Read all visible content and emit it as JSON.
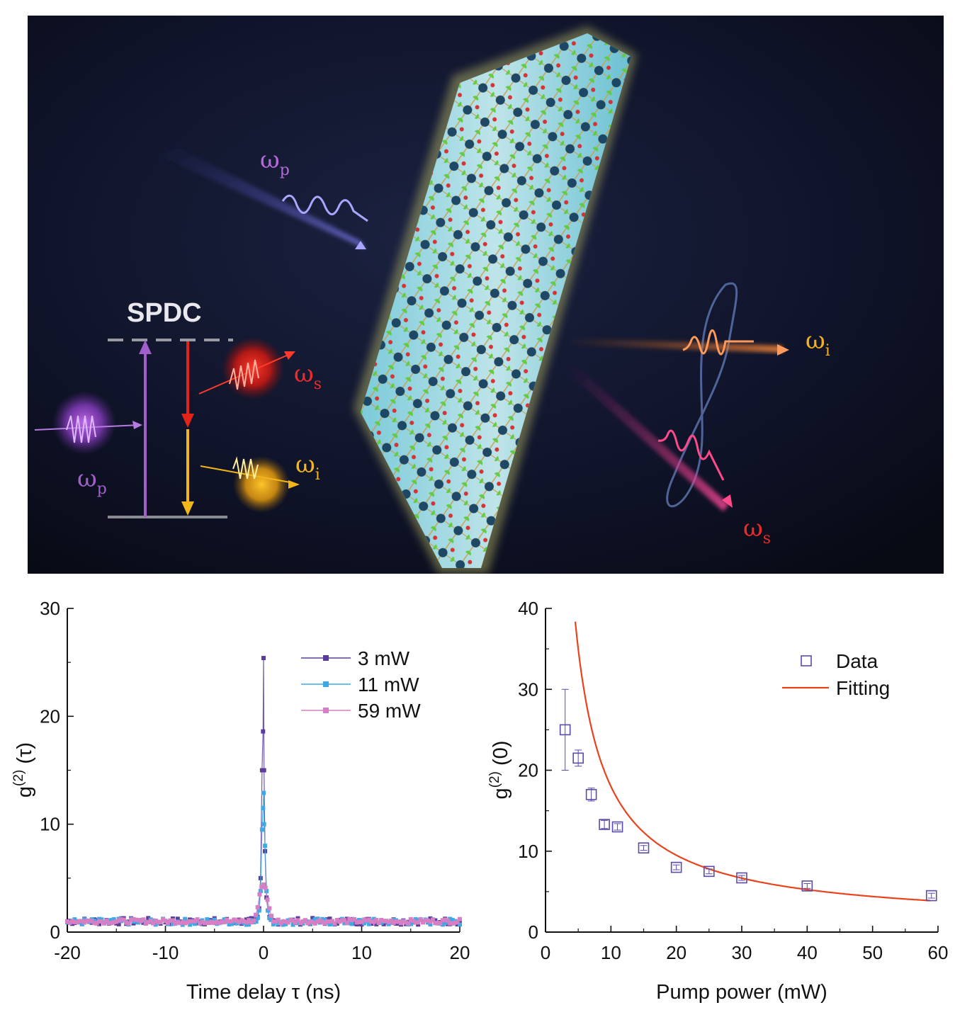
{
  "illustration": {
    "spdc_title": "SPDC",
    "omega_symbol": "ω",
    "pump_sub": "p",
    "signal_sub": "s",
    "idler_sub": "i",
    "colors": {
      "background": "#0c0f1c",
      "pump": "#a25fc9",
      "signal": "#ef2a2a",
      "idler": "#f4b61a",
      "crystal": "#9fe3f0"
    }
  },
  "chart_data": [
    {
      "type": "line",
      "title": "",
      "xlabel": "Time delay τ (ns)",
      "ylabel_main": "g",
      "ylabel_sup": "(2)",
      "ylabel_tail": " (τ)",
      "xlim": [
        -20,
        20
      ],
      "ylim": [
        0,
        30
      ],
      "xticks": [
        -20,
        -10,
        0,
        10,
        20
      ],
      "yticks": [
        0,
        10,
        20,
        30
      ],
      "tick_labels_x": [
        "-20",
        "-10",
        "0",
        "10",
        "20"
      ],
      "tick_labels_y": [
        "0",
        "10",
        "20",
        "30"
      ],
      "grid": false,
      "legend_position": "top-right",
      "series": [
        {
          "name": "3 mW",
          "color": "#5b3c9a",
          "baseline": 1.0,
          "noise": 0.3,
          "peak_points": [
            [
              -0.6,
              1.4
            ],
            [
              -0.45,
              2.2
            ],
            [
              -0.3,
              5.0
            ],
            [
              -0.15,
              15.0
            ],
            [
              -0.05,
              18.6
            ],
            [
              0.0,
              25.4
            ],
            [
              0.05,
              15.0
            ],
            [
              0.15,
              7.5
            ],
            [
              0.3,
              3.2
            ],
            [
              0.45,
              2.0
            ],
            [
              0.6,
              1.4
            ]
          ]
        },
        {
          "name": "11 mW",
          "color": "#3fa9e6",
          "baseline": 0.95,
          "noise": 0.28,
          "peak_points": [
            [
              -0.6,
              1.3
            ],
            [
              -0.45,
              2.0
            ],
            [
              -0.3,
              3.8
            ],
            [
              -0.15,
              9.5
            ],
            [
              -0.05,
              11.5
            ],
            [
              0.0,
              12.9
            ],
            [
              0.05,
              10.0
            ],
            [
              0.15,
              8.0
            ],
            [
              0.3,
              3.8
            ],
            [
              0.45,
              2.0
            ],
            [
              0.6,
              1.3
            ]
          ]
        },
        {
          "name": "59 mW",
          "color": "#d67fc4",
          "baseline": 1.0,
          "noise": 0.2,
          "peak_points": [
            [
              -0.8,
              1.6
            ],
            [
              -0.6,
              2.3
            ],
            [
              -0.4,
              3.5
            ],
            [
              -0.2,
              4.2
            ],
            [
              0.0,
              4.4
            ],
            [
              0.2,
              4.1
            ],
            [
              0.4,
              3.0
            ],
            [
              0.6,
              2.2
            ],
            [
              0.8,
              1.5
            ]
          ]
        }
      ]
    },
    {
      "type": "scatter",
      "title": "",
      "xlabel": "Pump power (mW)",
      "ylabel_main": "g",
      "ylabel_sup": "(2)",
      "ylabel_tail": " (0)",
      "xlim": [
        0,
        60
      ],
      "ylim": [
        0,
        40
      ],
      "xticks": [
        0,
        10,
        20,
        30,
        40,
        50,
        60
      ],
      "yticks": [
        0,
        10,
        20,
        30,
        40
      ],
      "tick_labels_x": [
        "0",
        "10",
        "20",
        "30",
        "40",
        "50",
        "60"
      ],
      "tick_labels_y": [
        "0",
        "10",
        "20",
        "30",
        "40"
      ],
      "grid": false,
      "legend_position": "top-right",
      "series": [
        {
          "name": "Data",
          "color": "#5b4aa8",
          "marker": "open-square",
          "x": [
            3,
            5,
            7,
            9,
            11,
            15,
            20,
            25,
            30,
            40,
            59
          ],
          "y": [
            25.0,
            21.5,
            17.0,
            13.3,
            13.0,
            10.4,
            8.0,
            7.5,
            6.7,
            5.7,
            4.5
          ],
          "error": [
            5.0,
            1.0,
            0.8,
            0.5,
            0.4,
            0.3,
            0.3,
            0.3,
            0.3,
            0.3,
            0.3
          ]
        },
        {
          "name": "Fitting",
          "color": "#e8431c",
          "type": "line",
          "model": "1 + A/P",
          "A": 170,
          "x_start": 3.3,
          "x_end": 59
        }
      ]
    }
  ]
}
